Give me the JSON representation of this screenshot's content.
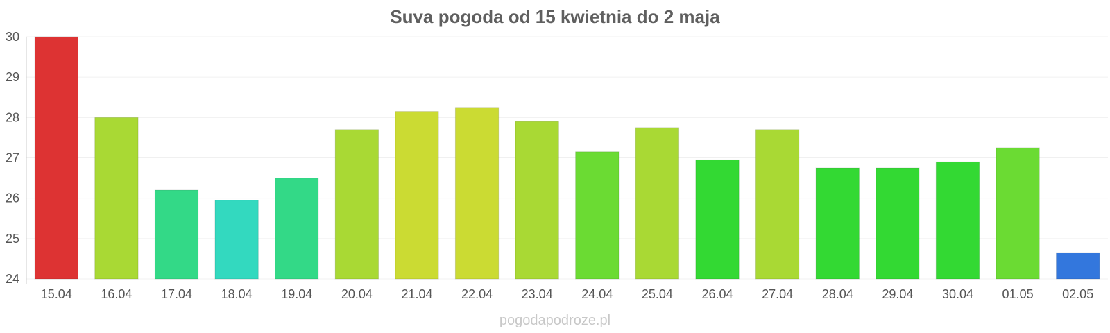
{
  "chart_data": {
    "type": "bar",
    "title": "Suva pogoda od 15 kwietnia do 2 maja",
    "xlabel": "",
    "ylabel": "",
    "ylim": [
      24,
      30
    ],
    "yticks": [
      "24",
      "25",
      "26",
      "27",
      "28",
      "29",
      "30"
    ],
    "grid": true,
    "legend": "none",
    "categories": [
      "15.04",
      "16.04",
      "17.04",
      "18.04",
      "19.04",
      "20.04",
      "21.04",
      "22.04",
      "23.04",
      "24.04",
      "25.04",
      "26.04",
      "27.04",
      "28.04",
      "29.04",
      "30.04",
      "01.05",
      "02.05"
    ],
    "values": [
      30.0,
      28.0,
      26.2,
      25.95,
      26.5,
      27.7,
      28.15,
      28.25,
      27.9,
      27.15,
      27.75,
      26.95,
      27.7,
      26.75,
      26.75,
      26.9,
      27.25,
      24.65
    ],
    "colors": [
      "#dd3333",
      "#a9d934",
      "#33d987",
      "#33d9bf",
      "#33d987",
      "#a9d934",
      "#cbdb33",
      "#cbdb33",
      "#a9d934",
      "#6bdb33",
      "#a9d934",
      "#33d933",
      "#a9d934",
      "#33d933",
      "#33d933",
      "#33d933",
      "#6bdb33",
      "#3377dd"
    ]
  },
  "watermark": "pogodapodroze.pl"
}
